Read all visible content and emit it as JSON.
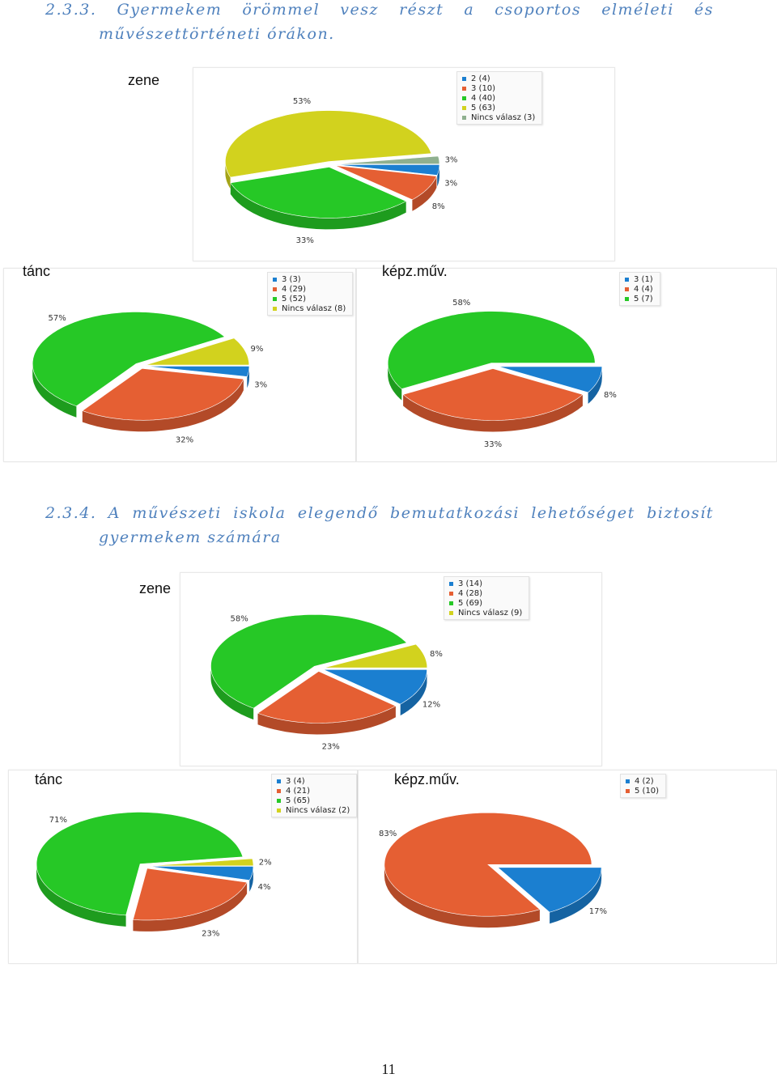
{
  "section1": {
    "heading_words": [
      "2.3.3.",
      "Gyermekem",
      "örömmel",
      "vesz",
      "részt",
      "a",
      "csoportos",
      "elméleti",
      "és"
    ],
    "heading_line2": "művészettörténeti órákon."
  },
  "section2": {
    "heading_words": [
      "2.3.4.",
      "A",
      "művészeti",
      "iskola",
      "elegendő",
      "bemutatkozási",
      "lehetőséget",
      "biztosít"
    ],
    "heading_line2": "gyermekem számára"
  },
  "page_number": "11",
  "colors": {
    "blue": "#1b7fd0",
    "orange": "#e55f33",
    "green": "#26c826",
    "yellow": "#d2d21e",
    "gray": "#8fb08f"
  },
  "chart_data": [
    {
      "type": "pie",
      "title": "zene",
      "slices": [
        {
          "label": "2 (4)",
          "pct_label": "3%",
          "value": 4,
          "color": "#1b7fd0"
        },
        {
          "label": "3 (10)",
          "pct_label": "8%",
          "value": 10,
          "color": "#e55f33"
        },
        {
          "label": "4 (40)",
          "pct_label": "33%",
          "value": 40,
          "color": "#26c826"
        },
        {
          "label": "5 (63)",
          "pct_label": "53%",
          "value": 63,
          "color": "#d2d21e"
        },
        {
          "label": "Nincs válasz (3)",
          "pct_label": "3%",
          "value": 3,
          "color": "#8fb08f"
        }
      ]
    },
    {
      "type": "pie",
      "title": "tánc",
      "slices": [
        {
          "label": "3 (3)",
          "pct_label": "3%",
          "value": 3,
          "color": "#1b7fd0"
        },
        {
          "label": "4 (29)",
          "pct_label": "32%",
          "value": 29,
          "color": "#e55f33"
        },
        {
          "label": "5 (52)",
          "pct_label": "57%",
          "value": 52,
          "color": "#26c826"
        },
        {
          "label": "Nincs válasz (8)",
          "pct_label": "9%",
          "value": 8,
          "color": "#d2d21e"
        }
      ]
    },
    {
      "type": "pie",
      "title": "képz.műv.",
      "slices": [
        {
          "label": "3 (1)",
          "pct_label": "8%",
          "value": 1,
          "color": "#1b7fd0"
        },
        {
          "label": "4 (4)",
          "pct_label": "33%",
          "value": 4,
          "color": "#e55f33"
        },
        {
          "label": "5 (7)",
          "pct_label": "58%",
          "value": 7,
          "color": "#26c826"
        }
      ]
    },
    {
      "type": "pie",
      "title": "zene",
      "slices": [
        {
          "label": "3 (14)",
          "pct_label": "12%",
          "value": 14,
          "color": "#1b7fd0"
        },
        {
          "label": "4 (28)",
          "pct_label": "23%",
          "value": 28,
          "color": "#e55f33"
        },
        {
          "label": "5 (69)",
          "pct_label": "58%",
          "value": 69,
          "color": "#26c826"
        },
        {
          "label": "Nincs válasz (9)",
          "pct_label": "8%",
          "value": 9,
          "color": "#d2d21e"
        }
      ]
    },
    {
      "type": "pie",
      "title": "tánc",
      "slices": [
        {
          "label": "3 (4)",
          "pct_label": "4%",
          "value": 4,
          "color": "#1b7fd0"
        },
        {
          "label": "4 (21)",
          "pct_label": "23%",
          "value": 21,
          "color": "#e55f33"
        },
        {
          "label": "5 (65)",
          "pct_label": "71%",
          "value": 65,
          "color": "#26c826"
        },
        {
          "label": "Nincs válasz (2)",
          "pct_label": "2%",
          "value": 2,
          "color": "#d2d21e"
        }
      ]
    },
    {
      "type": "pie",
      "title": "képz.műv.",
      "slices": [
        {
          "label": "4 (2)",
          "pct_label": "17%",
          "value": 2,
          "color": "#1b7fd0"
        },
        {
          "label": "5 (10)",
          "pct_label": "83%",
          "value": 10,
          "color": "#e55f33"
        }
      ]
    }
  ]
}
